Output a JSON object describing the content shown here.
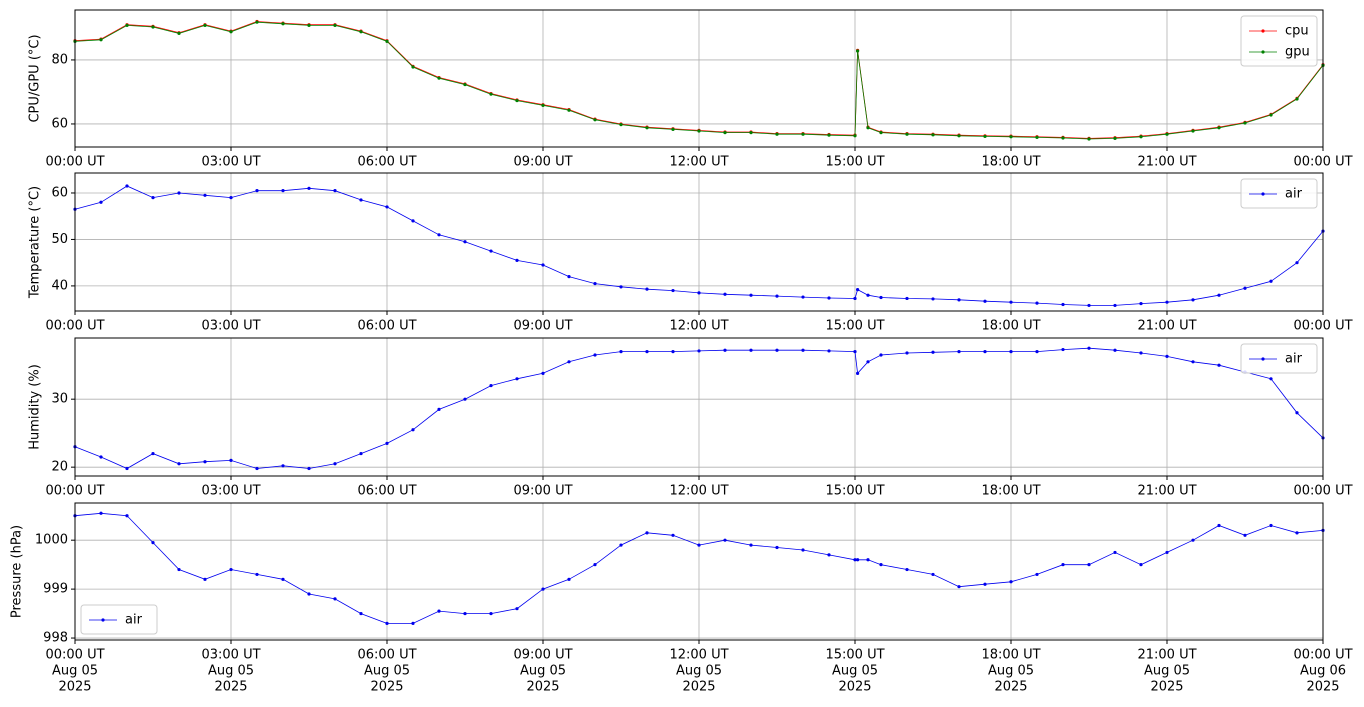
{
  "chart_data": [
    {
      "type": "line",
      "ylabel": "CPU/GPU (°C)",
      "grid": true,
      "legend": "upper right",
      "x": [
        0,
        0.5,
        1,
        1.5,
        2,
        2.5,
        3,
        3.5,
        4,
        4.5,
        5,
        5.5,
        6,
        6.5,
        7,
        7.5,
        8,
        8.5,
        9,
        9.5,
        10,
        10.5,
        11,
        11.5,
        12,
        12.5,
        13,
        13.5,
        14,
        14.5,
        15,
        15.05,
        15.25,
        15.5,
        16,
        16.5,
        17,
        17.5,
        18,
        18.5,
        19,
        19.5,
        20,
        20.5,
        21,
        21.5,
        22,
        22.5,
        23,
        23.5,
        24
      ],
      "series": [
        {
          "name": "cpu",
          "color": "#ff0000",
          "values": [
            86,
            86.5,
            91,
            90.5,
            88.5,
            91,
            89,
            92,
            91.5,
            91,
            91,
            89,
            86,
            78,
            74.5,
            72.5,
            69.5,
            67.5,
            66,
            64.5,
            61.5,
            60,
            59,
            58.5,
            58,
            57.5,
            57.5,
            57,
            57,
            56.7,
            56.5,
            83,
            59,
            57.5,
            57,
            56.8,
            56.5,
            56.3,
            56.2,
            56,
            55.8,
            55.5,
            55.7,
            56.2,
            57,
            58,
            59,
            60.5,
            63,
            68,
            78.5
          ]
        },
        {
          "name": "gpu",
          "color": "#008000",
          "values": [
            85.8,
            86.3,
            90.8,
            90.3,
            88.3,
            90.8,
            88.8,
            91.8,
            91.3,
            90.8,
            90.8,
            88.8,
            85.8,
            77.8,
            74.3,
            72.3,
            69.3,
            67.3,
            65.8,
            64.3,
            61.3,
            59.8,
            58.8,
            58.3,
            57.8,
            57.3,
            57.3,
            56.8,
            56.8,
            56.5,
            56.3,
            82.8,
            58.8,
            57.3,
            56.8,
            56.6,
            56.3,
            56.1,
            56,
            55.8,
            55.6,
            55.3,
            55.5,
            56,
            56.8,
            57.8,
            58.8,
            60.3,
            62.8,
            67.8,
            78.3
          ]
        }
      ],
      "xlim": [
        0,
        24
      ],
      "ylim": [
        52.8,
        95.6
      ],
      "yticks": [
        60,
        80
      ],
      "xticks": [
        {
          "value": 0,
          "label": "00:00 UT"
        },
        {
          "value": 3,
          "label": "03:00 UT"
        },
        {
          "value": 6,
          "label": "06:00 UT"
        },
        {
          "value": 9,
          "label": "09:00 UT"
        },
        {
          "value": 12,
          "label": "12:00 UT"
        },
        {
          "value": 15,
          "label": "15:00 UT"
        },
        {
          "value": 18,
          "label": "18:00 UT"
        },
        {
          "value": 21,
          "label": "21:00 UT"
        },
        {
          "value": 24,
          "label": "00:00 UT"
        }
      ]
    },
    {
      "type": "line",
      "ylabel": "Temperature (°C)",
      "grid": true,
      "legend": "upper right",
      "x": [
        0,
        0.5,
        1,
        1.5,
        2,
        2.5,
        3,
        3.5,
        4,
        4.5,
        5,
        5.5,
        6,
        6.5,
        7,
        7.5,
        8,
        8.5,
        9,
        9.5,
        10,
        10.5,
        11,
        11.5,
        12,
        12.5,
        13,
        13.5,
        14,
        14.5,
        15,
        15.05,
        15.25,
        15.5,
        16,
        16.5,
        17,
        17.5,
        18,
        18.5,
        19,
        19.5,
        20,
        20.5,
        21,
        21.5,
        22,
        22.5,
        23,
        23.5,
        24
      ],
      "series": [
        {
          "name": "air",
          "color": "#0000ee",
          "values": [
            56.5,
            58,
            61.5,
            59,
            60,
            59.5,
            59,
            60.5,
            60.5,
            61,
            60.5,
            58.5,
            57,
            54,
            51,
            49.5,
            47.5,
            45.5,
            44.5,
            42,
            40.5,
            39.8,
            39.3,
            39,
            38.5,
            38.2,
            38,
            37.8,
            37.6,
            37.4,
            37.3,
            39.2,
            38,
            37.5,
            37.3,
            37.2,
            37,
            36.7,
            36.5,
            36.3,
            36,
            35.8,
            35.8,
            36.2,
            36.5,
            37,
            38,
            39.5,
            41,
            45,
            51.8
          ]
        }
      ],
      "xlim": [
        0,
        24
      ],
      "ylim": [
        34.6,
        64.3
      ],
      "yticks": [
        40,
        50,
        60
      ],
      "xticks": [
        {
          "value": 0,
          "label": "00:00 UT"
        },
        {
          "value": 3,
          "label": "03:00 UT"
        },
        {
          "value": 6,
          "label": "06:00 UT"
        },
        {
          "value": 9,
          "label": "09:00 UT"
        },
        {
          "value": 12,
          "label": "12:00 UT"
        },
        {
          "value": 15,
          "label": "15:00 UT"
        },
        {
          "value": 18,
          "label": "18:00 UT"
        },
        {
          "value": 21,
          "label": "21:00 UT"
        },
        {
          "value": 24,
          "label": "00:00 UT"
        }
      ]
    },
    {
      "type": "line",
      "ylabel": "Humidity (%)",
      "grid": true,
      "legend": "upper right",
      "x": [
        0,
        0.5,
        1,
        1.5,
        2,
        2.5,
        3,
        3.5,
        4,
        4.5,
        5,
        5.5,
        6,
        6.5,
        7,
        7.5,
        8,
        8.5,
        9,
        9.5,
        10,
        10.5,
        11,
        11.5,
        12,
        12.5,
        13,
        13.5,
        14,
        14.5,
        15,
        15.05,
        15.25,
        15.5,
        16,
        16.5,
        17,
        17.5,
        18,
        18.5,
        19,
        19.5,
        20,
        20.5,
        21,
        21.5,
        22,
        22.5,
        23,
        23.5,
        24
      ],
      "series": [
        {
          "name": "air",
          "color": "#0000ee",
          "values": [
            23,
            21.5,
            19.8,
            22,
            20.5,
            20.8,
            21,
            19.8,
            20.2,
            19.8,
            20.5,
            22,
            23.5,
            25.5,
            28.5,
            30,
            32,
            33,
            33.8,
            35.5,
            36.5,
            37,
            37,
            37,
            37.1,
            37.2,
            37.2,
            37.2,
            37.2,
            37.1,
            37,
            33.8,
            35.5,
            36.5,
            36.8,
            36.9,
            37,
            37,
            37,
            37,
            37.3,
            37.5,
            37.2,
            36.8,
            36.3,
            35.5,
            35,
            34,
            33,
            28,
            24.3
          ]
        }
      ],
      "xlim": [
        0,
        24
      ],
      "ylim": [
        18.7,
        39
      ],
      "yticks": [
        20,
        30
      ],
      "xticks": [
        {
          "value": 0,
          "label": "00:00 UT"
        },
        {
          "value": 3,
          "label": "03:00 UT"
        },
        {
          "value": 6,
          "label": "06:00 UT"
        },
        {
          "value": 9,
          "label": "09:00 UT"
        },
        {
          "value": 12,
          "label": "12:00 UT"
        },
        {
          "value": 15,
          "label": "15:00 UT"
        },
        {
          "value": 18,
          "label": "18:00 UT"
        },
        {
          "value": 21,
          "label": "21:00 UT"
        },
        {
          "value": 24,
          "label": "00:00 UT"
        }
      ]
    },
    {
      "type": "line",
      "ylabel": "Pressure (hPa)",
      "grid": true,
      "legend": "lower left",
      "x": [
        0,
        0.5,
        1,
        1.5,
        2,
        2.5,
        3,
        3.5,
        4,
        4.5,
        5,
        5.5,
        6,
        6.5,
        7,
        7.5,
        8,
        8.5,
        9,
        9.5,
        10,
        10.5,
        11,
        11.5,
        12,
        12.5,
        13,
        13.5,
        14,
        14.5,
        15,
        15.05,
        15.25,
        15.5,
        16,
        16.5,
        17,
        17.5,
        18,
        18.5,
        19,
        19.5,
        20,
        20.5,
        21,
        21.5,
        22,
        22.5,
        23,
        23.5,
        24
      ],
      "series": [
        {
          "name": "air",
          "color": "#0000ee",
          "values": [
            1000.5,
            1000.55,
            1000.5,
            999.95,
            999.4,
            999.2,
            999.4,
            999.3,
            999.2,
            998.9,
            998.8,
            998.5,
            998.3,
            998.3,
            998.55,
            998.5,
            998.5,
            998.6,
            999,
            999.2,
            999.5,
            999.9,
            1000.15,
            1000.1,
            999.9,
            1000,
            999.9,
            999.85,
            999.8,
            999.7,
            999.6,
            999.6,
            999.6,
            999.5,
            999.4,
            999.3,
            999.05,
            999.1,
            999.15,
            999.3,
            999.5,
            999.5,
            999.75,
            999.5,
            999.75,
            1000,
            1000.3,
            1000.1,
            1000.3,
            1000.15,
            1000.2
          ]
        }
      ],
      "xlim": [
        0,
        24
      ],
      "ylim": [
        997.96,
        1000.76
      ],
      "yticks": [
        998,
        999,
        1000
      ],
      "xticks": [
        {
          "value": 0,
          "label": [
            "00:00 UT",
            "Aug 05",
            "2025"
          ]
        },
        {
          "value": 3,
          "label": [
            "03:00 UT",
            "Aug 05",
            "2025"
          ]
        },
        {
          "value": 6,
          "label": [
            "06:00 UT",
            "Aug 05",
            "2025"
          ]
        },
        {
          "value": 9,
          "label": [
            "09:00 UT",
            "Aug 05",
            "2025"
          ]
        },
        {
          "value": 12,
          "label": [
            "12:00 UT",
            "Aug 05",
            "2025"
          ]
        },
        {
          "value": 15,
          "label": [
            "15:00 UT",
            "Aug 05",
            "2025"
          ]
        },
        {
          "value": 18,
          "label": [
            "18:00 UT",
            "Aug 05",
            "2025"
          ]
        },
        {
          "value": 21,
          "label": [
            "21:00 UT",
            "Aug 05",
            "2025"
          ]
        },
        {
          "value": 24,
          "label": [
            "00:00 UT",
            "Aug 06",
            "2025"
          ]
        }
      ]
    }
  ]
}
